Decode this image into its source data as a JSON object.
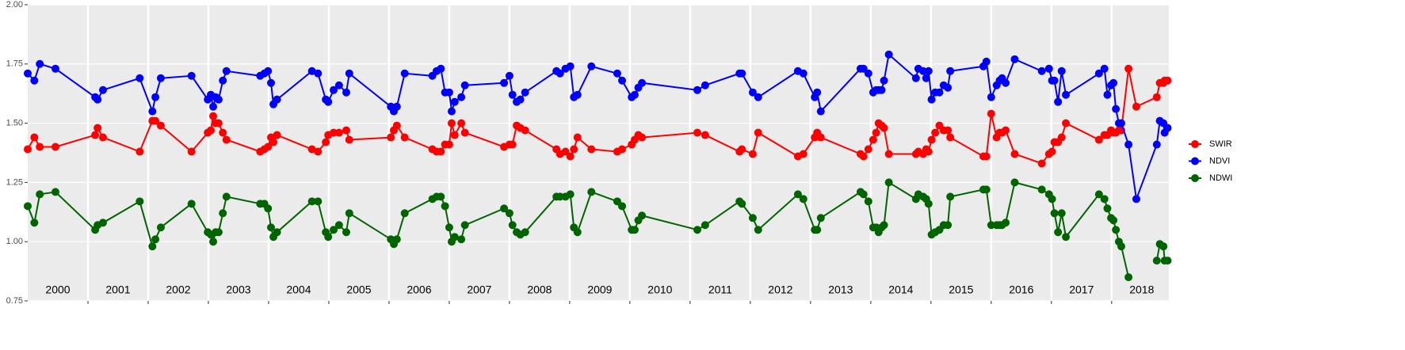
{
  "chart_data": {
    "type": "line",
    "year_labels": [
      "2000",
      "2001",
      "2002",
      "2003",
      "2004",
      "2005",
      "2006",
      "2007",
      "2008",
      "2009",
      "2010",
      "2011",
      "2012",
      "2013",
      "2014",
      "2015",
      "2016",
      "2017",
      "2018"
    ],
    "x": [
      2000,
      2000.11,
      2000.2,
      2000.46,
      2001.12,
      2001.16,
      2001.25,
      2001.86,
      2002.07,
      2002.12,
      2002.21,
      2002.72,
      2002.99,
      2003.04,
      2003.08,
      2003.12,
      2003.17,
      2003.24,
      2003.3,
      2003.86,
      2003.93,
      2003.99,
      2004.04,
      2004.08,
      2004.14,
      2004.72,
      2004.82,
      2004.95,
      2004.99,
      2005.08,
      2005.17,
      2005.29,
      2005.34,
      2006.03,
      2006.08,
      2006.13,
      2006.26,
      2006.72,
      2006.79,
      2006.86,
      2006.93,
      2007,
      2007.04,
      2007.09,
      2007.2,
      2007.26,
      2007.91,
      2008,
      2008.05,
      2008.12,
      2008.18,
      2008.26,
      2008.78,
      2008.84,
      2008.93,
      2009.01,
      2009.07,
      2009.13,
      2009.36,
      2009.79,
      2009.87,
      2010.03,
      2010.08,
      2010.14,
      2010.2,
      2011.12,
      2011.25,
      2011.82,
      2011.86,
      2012.04,
      2012.13,
      2012.79,
      2012.88,
      2013.07,
      2013.11,
      2013.17,
      2013.83,
      2013.88,
      2013.96,
      2014.04,
      2014.09,
      2014.13,
      2014.18,
      2014.22,
      2014.3,
      2014.75,
      2014.79,
      2014.87,
      2014.92,
      2014.96,
      2015.01,
      2015.07,
      2015.14,
      2015.21,
      2015.28,
      2015.32,
      2015.87,
      2015.92,
      2016,
      2016.09,
      2016.14,
      2016.18,
      2016.24,
      2016.39,
      2016.84,
      2016.96,
      2017.01,
      2017.05,
      2017.11,
      2017.17,
      2017.24,
      2017.79,
      2017.88,
      2017.93,
      2017.99,
      2018.03,
      2018.07,
      2018.12,
      2018.16,
      2018.28,
      2018.41,
      2018.75,
      2018.8,
      2018.86,
      2018.88,
      2018.93
    ],
    "series": [
      {
        "name": "SWIR",
        "color": "#ff0000",
        "values": [
          1.39,
          1.44,
          1.4,
          1.4,
          1.45,
          1.48,
          1.44,
          1.38,
          1.51,
          1.51,
          1.49,
          1.38,
          1.46,
          1.47,
          1.53,
          1.5,
          1.5,
          1.46,
          1.43,
          1.38,
          1.39,
          1.4,
          1.44,
          1.42,
          1.45,
          1.39,
          1.38,
          1.42,
          1.45,
          1.46,
          1.46,
          1.47,
          1.43,
          1.44,
          1.47,
          1.49,
          1.44,
          1.39,
          1.38,
          1.38,
          1.41,
          1.41,
          1.5,
          1.45,
          1.5,
          1.46,
          1.4,
          1.41,
          1.41,
          1.49,
          1.48,
          1.47,
          1.39,
          1.37,
          1.38,
          1.36,
          1.39,
          1.44,
          1.39,
          1.38,
          1.39,
          1.41,
          1.43,
          1.45,
          1.44,
          1.46,
          1.45,
          1.38,
          1.39,
          1.37,
          1.46,
          1.36,
          1.37,
          1.44,
          1.46,
          1.44,
          1.37,
          1.36,
          1.39,
          1.43,
          1.46,
          1.5,
          1.49,
          1.48,
          1.37,
          1.37,
          1.38,
          1.37,
          1.39,
          1.38,
          1.43,
          1.46,
          1.49,
          1.47,
          1.47,
          1.44,
          1.36,
          1.36,
          1.54,
          1.44,
          1.46,
          1.46,
          1.47,
          1.37,
          1.33,
          1.37,
          1.38,
          1.42,
          1.42,
          1.44,
          1.5,
          1.43,
          1.45,
          1.45,
          1.47,
          1.46,
          1.46,
          1.47,
          1.47,
          1.73,
          1.57,
          1.61,
          1.67,
          1.67,
          1.68,
          1.68
        ]
      },
      {
        "name": "NDVI",
        "color": "#0000ff",
        "values": [
          1.71,
          1.68,
          1.75,
          1.73,
          1.61,
          1.6,
          1.64,
          1.69,
          1.55,
          1.61,
          1.69,
          1.7,
          1.6,
          1.62,
          1.57,
          1.61,
          1.6,
          1.68,
          1.72,
          1.7,
          1.71,
          1.72,
          1.67,
          1.58,
          1.6,
          1.72,
          1.71,
          1.6,
          1.59,
          1.64,
          1.66,
          1.63,
          1.71,
          1.57,
          1.55,
          1.57,
          1.71,
          1.7,
          1.72,
          1.73,
          1.63,
          1.63,
          1.55,
          1.59,
          1.61,
          1.66,
          1.67,
          1.7,
          1.62,
          1.59,
          1.6,
          1.63,
          1.72,
          1.71,
          1.73,
          1.74,
          1.61,
          1.62,
          1.74,
          1.71,
          1.68,
          1.61,
          1.62,
          1.65,
          1.67,
          1.64,
          1.66,
          1.71,
          1.71,
          1.63,
          1.61,
          1.72,
          1.71,
          1.61,
          1.63,
          1.55,
          1.73,
          1.73,
          1.71,
          1.63,
          1.64,
          1.64,
          1.64,
          1.68,
          1.79,
          1.69,
          1.73,
          1.72,
          1.69,
          1.72,
          1.6,
          1.63,
          1.63,
          1.66,
          1.65,
          1.72,
          1.74,
          1.76,
          1.61,
          1.66,
          1.68,
          1.69,
          1.67,
          1.77,
          1.72,
          1.73,
          1.68,
          1.68,
          1.59,
          1.72,
          1.62,
          1.71,
          1.73,
          1.62,
          1.66,
          1.67,
          1.56,
          1.5,
          1.5,
          1.41,
          1.18,
          1.41,
          1.51,
          1.5,
          1.46,
          1.48
        ]
      },
      {
        "name": "NDWI",
        "color": "#006400",
        "values": [
          1.15,
          1.08,
          1.2,
          1.21,
          1.05,
          1.07,
          1.08,
          1.17,
          0.98,
          1.01,
          1.06,
          1.16,
          1.04,
          1.03,
          1.0,
          1.04,
          1.04,
          1.12,
          1.19,
          1.16,
          1.16,
          1.14,
          1.06,
          1.02,
          1.04,
          1.17,
          1.17,
          1.04,
          1.02,
          1.05,
          1.07,
          1.04,
          1.12,
          1.01,
          0.99,
          1.01,
          1.12,
          1.18,
          1.19,
          1.19,
          1.15,
          1.06,
          1.0,
          1.02,
          1.01,
          1.07,
          1.14,
          1.12,
          1.07,
          1.04,
          1.03,
          1.04,
          1.19,
          1.19,
          1.19,
          1.2,
          1.06,
          1.04,
          1.21,
          1.17,
          1.15,
          1.05,
          1.05,
          1.09,
          1.11,
          1.05,
          1.07,
          1.17,
          1.16,
          1.1,
          1.05,
          1.2,
          1.18,
          1.05,
          1.05,
          1.1,
          1.21,
          1.2,
          1.17,
          1.06,
          1.06,
          1.04,
          1.06,
          1.07,
          1.25,
          1.18,
          1.2,
          1.19,
          1.18,
          1.16,
          1.03,
          1.04,
          1.05,
          1.07,
          1.07,
          1.19,
          1.22,
          1.22,
          1.07,
          1.07,
          1.07,
          1.07,
          1.08,
          1.25,
          1.22,
          1.2,
          1.18,
          1.12,
          1.04,
          1.12,
          1.02,
          1.2,
          1.18,
          1.14,
          1.1,
          1.09,
          1.05,
          1.0,
          0.98,
          0.85,
          null,
          0.92,
          0.99,
          0.98,
          0.92,
          0.92
        ]
      }
    ],
    "xlim": [
      2000,
      2018.95
    ],
    "xticks": [
      2001,
      2002,
      2003,
      2004,
      2005,
      2006,
      2007,
      2008,
      2009,
      2010,
      2011,
      2012,
      2013,
      2014,
      2015,
      2016,
      2017,
      2018
    ],
    "ylim": [
      0.75,
      2
    ],
    "yticks": [
      0.75,
      {
        "value": 1,
        "label": "1.00"
      },
      1.25,
      {
        "value": 1.5,
        "label": "1.50"
      },
      1.75,
      {
        "value": 2,
        "label": "2.00"
      }
    ],
    "grid": true,
    "legend": "right"
  }
}
